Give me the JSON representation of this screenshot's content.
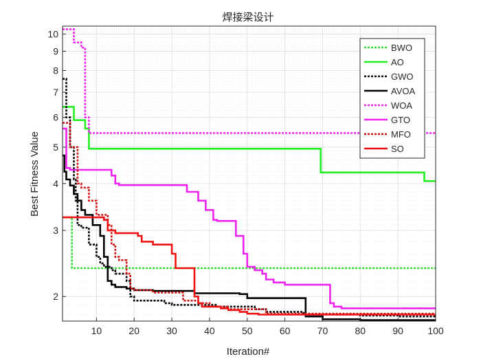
{
  "chart_data": {
    "type": "line",
    "title": "焊接梁设计",
    "xlabel": "Iteration#",
    "ylabel": "Best Fitness Value",
    "xlim": [
      1,
      100
    ],
    "ylim": [
      1.72,
      10.5
    ],
    "yscale": "log",
    "grid": true,
    "legend_position": "top-right",
    "xticks": [
      10,
      20,
      30,
      40,
      50,
      60,
      70,
      80,
      90,
      100
    ],
    "yticks": [
      2,
      3,
      4,
      5,
      6,
      7,
      8,
      9,
      10
    ],
    "series": [
      {
        "name": "BWO",
        "color": "#33dd33",
        "dash": "dotted",
        "x": [
          1,
          3,
          3.5,
          100
        ],
        "y": [
          3.25,
          3.25,
          2.38,
          2.38
        ]
      },
      {
        "name": "AO",
        "color": "#22ee22",
        "dash": "solid",
        "x": [
          1,
          3,
          4,
          6,
          7,
          8,
          69,
          69.5,
          96,
          97,
          100
        ],
        "y": [
          6.4,
          6.4,
          5.9,
          5.9,
          5.6,
          4.95,
          4.95,
          4.28,
          4.28,
          4.06,
          4.06
        ]
      },
      {
        "name": "GWO",
        "color": "#000000",
        "dash": "dotted",
        "x": [
          1,
          1.5,
          2,
          3,
          4,
          4.5,
          5,
          6,
          8,
          10,
          11,
          12,
          14,
          15,
          18,
          19,
          20,
          28,
          30,
          42,
          52,
          55,
          65,
          80,
          90,
          100
        ],
        "y": [
          7.6,
          7.6,
          6.0,
          5.0,
          4.1,
          3.6,
          3.1,
          3.05,
          2.75,
          2.55,
          2.45,
          2.4,
          2.35,
          2.3,
          2.2,
          2.0,
          1.95,
          1.92,
          1.9,
          1.88,
          1.85,
          1.82,
          1.79,
          1.78,
          1.77,
          1.77
        ]
      },
      {
        "name": "AVOA",
        "color": "#000000",
        "dash": "solid",
        "x": [
          1,
          1.5,
          2,
          3,
          4,
          5,
          6,
          7,
          9,
          11,
          12,
          13,
          14,
          15,
          18,
          20,
          25,
          36,
          48,
          50,
          65,
          65.5,
          70,
          80,
          90,
          100
        ],
        "y": [
          4.75,
          4.3,
          4.1,
          3.95,
          3.75,
          3.6,
          3.4,
          3.3,
          3.1,
          2.9,
          2.55,
          2.2,
          2.15,
          2.12,
          2.1,
          2.08,
          2.07,
          2.04,
          2.03,
          1.98,
          1.98,
          1.77,
          1.74,
          1.73,
          1.73,
          1.72
        ]
      },
      {
        "name": "WOA",
        "color": "#ee22ee",
        "dash": "dotted",
        "x": [
          1,
          3,
          4,
          6,
          7,
          8,
          100
        ],
        "y": [
          10.3,
          10.3,
          9.5,
          9.2,
          6.0,
          5.45,
          5.45
        ]
      },
      {
        "name": "GTO",
        "color": "#ee22ee",
        "dash": "solid",
        "x": [
          1,
          2,
          3,
          13,
          14,
          15,
          16,
          22,
          30,
          34,
          37,
          39,
          41,
          42,
          47,
          49,
          50,
          52,
          54,
          55,
          57,
          60,
          71,
          72,
          73,
          75,
          100
        ],
        "y": [
          5.6,
          4.4,
          4.35,
          4.35,
          4.2,
          4.0,
          3.96,
          3.96,
          3.96,
          3.8,
          3.6,
          3.4,
          3.2,
          3.18,
          2.9,
          2.6,
          2.4,
          2.35,
          2.3,
          2.22,
          2.18,
          2.15,
          2.15,
          1.92,
          1.88,
          1.86,
          1.86
        ]
      },
      {
        "name": "MFO",
        "color": "#cc1111",
        "dash": "dotted",
        "x": [
          1,
          2,
          3,
          5,
          6,
          8,
          10,
          12,
          13,
          14,
          15,
          16,
          18,
          19,
          20,
          25,
          33,
          37,
          40,
          45,
          55,
          100
        ],
        "y": [
          5.8,
          5.8,
          5.0,
          4.0,
          3.9,
          3.6,
          3.3,
          3.3,
          3.1,
          2.75,
          2.55,
          2.5,
          2.3,
          2.1,
          2.08,
          2.05,
          1.95,
          1.92,
          1.88,
          1.85,
          1.8,
          1.8
        ]
      },
      {
        "name": "SO",
        "color": "#ee1111",
        "dash": "solid",
        "x": [
          1,
          10,
          12,
          13,
          15,
          18,
          21,
          22,
          25,
          27,
          30,
          31,
          35,
          36,
          37,
          38,
          43,
          45,
          48,
          50,
          53,
          54,
          55,
          80,
          100
        ],
        "y": [
          3.25,
          3.25,
          3.2,
          3.0,
          2.95,
          2.95,
          2.9,
          2.8,
          2.75,
          2.75,
          2.6,
          2.38,
          2.38,
          2.0,
          1.92,
          1.88,
          1.86,
          1.84,
          1.82,
          1.8,
          1.79,
          1.79,
          1.79,
          1.79,
          1.79
        ]
      }
    ]
  }
}
